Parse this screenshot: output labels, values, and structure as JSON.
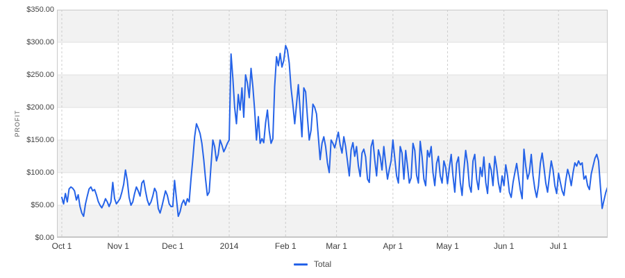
{
  "chart_data": {
    "type": "line",
    "ylabel": "PROFIT",
    "ylim": [
      0,
      350
    ],
    "grid": true,
    "legend_position": "bottom-center",
    "colors": {
      "line": "#2563e8",
      "band": "#f2f2f2",
      "band_alt": "#ffffff",
      "grid": "#e0e0e0",
      "grid_dashed": "#cccccc",
      "border": "#c9c9c9",
      "axis": "#c4c4c4",
      "tick_text": "#414141"
    },
    "y_ticks": [
      {
        "label": "$0.00",
        "value": 0
      },
      {
        "label": "$50.00",
        "value": 50
      },
      {
        "label": "$100.00",
        "value": 100
      },
      {
        "label": "$150.00",
        "value": 150
      },
      {
        "label": "$200.00",
        "value": 200
      },
      {
        "label": "$250.00",
        "value": 250
      },
      {
        "label": "$300.00",
        "value": 300
      },
      {
        "label": "$350.00",
        "value": 350
      }
    ],
    "x_ticks": [
      {
        "label": "Oct 1",
        "day": 0
      },
      {
        "label": "Nov 1",
        "day": 31
      },
      {
        "label": "Dec 1",
        "day": 61
      },
      {
        "label": "2014",
        "day": 92
      },
      {
        "label": "Feb 1",
        "day": 123
      },
      {
        "label": "Mar 1",
        "day": 151
      },
      {
        "label": "Apr 1",
        "day": 182
      },
      {
        "label": "May 1",
        "day": 212
      },
      {
        "label": "Jun 1",
        "day": 243
      },
      {
        "label": "Jul 1",
        "day": 273
      }
    ],
    "x_total_days": 300,
    "series": [
      {
        "name": "Total",
        "color": "#2563e8",
        "values": [
          62,
          52,
          68,
          55,
          75,
          78,
          76,
          72,
          58,
          66,
          48,
          38,
          33,
          52,
          64,
          75,
          78,
          72,
          74,
          66,
          56,
          50,
          46,
          52,
          60,
          55,
          48,
          55,
          85,
          60,
          52,
          56,
          60,
          70,
          82,
          104,
          88,
          62,
          50,
          55,
          68,
          78,
          72,
          64,
          84,
          88,
          72,
          58,
          50,
          55,
          64,
          76,
          70,
          45,
          38,
          48,
          60,
          72,
          65,
          52,
          48,
          48,
          88,
          60,
          33,
          40,
          52,
          58,
          50,
          60,
          55,
          90,
          120,
          155,
          175,
          168,
          160,
          145,
          120,
          90,
          65,
          70,
          110,
          150,
          140,
          118,
          128,
          150,
          142,
          132,
          138,
          145,
          150,
          282,
          245,
          200,
          175,
          220,
          196,
          230,
          185,
          250,
          238,
          215,
          260,
          232,
          196,
          150,
          186,
          145,
          152,
          146,
          176,
          196,
          164,
          145,
          152,
          232,
          278,
          264,
          283,
          262,
          272,
          295,
          288,
          268,
          230,
          205,
          175,
          205,
          235,
          196,
          155,
          230,
          224,
          185,
          150,
          165,
          205,
          200,
          190,
          155,
          120,
          145,
          155,
          140,
          115,
          100,
          150,
          145,
          138,
          150,
          162,
          142,
          130,
          155,
          140,
          118,
          95,
          135,
          146,
          125,
          140,
          110,
          94,
          130,
          136,
          124,
          90,
          85,
          140,
          150,
          120,
          95,
          135,
          124,
          104,
          140,
          114,
          90,
          105,
          118,
          150,
          122,
          95,
          84,
          140,
          130,
          90,
          134,
          110,
          84,
          92,
          145,
          134,
          96,
          84,
          148,
          124,
          90,
          80,
          134,
          124,
          140,
          100,
          80,
          114,
          125,
          95,
          84,
          118,
          108,
          83,
          108,
          128,
          95,
          70,
          114,
          124,
          85,
          65,
          104,
          134,
          114,
          80,
          70,
          118,
          128,
          90,
          74,
          108,
          94,
          124,
          85,
          68,
          114,
          104,
          80,
          125,
          108,
          84,
          70,
          95,
          80,
          112,
          95,
          70,
          62,
          85,
          100,
          114,
          94,
          74,
          60,
          136,
          110,
          90,
          100,
          128,
          95,
          75,
          62,
          80,
          114,
          130,
          108,
          84,
          70,
          95,
          118,
          104,
          80,
          68,
          99,
          85,
          72,
          65,
          88,
          105,
          95,
          80,
          100,
          115,
          110,
          118,
          112,
          115,
          90,
          95,
          80,
          74,
          98,
          110,
          122,
          128,
          118,
          80,
          45,
          58,
          70,
          78
        ]
      }
    ]
  }
}
